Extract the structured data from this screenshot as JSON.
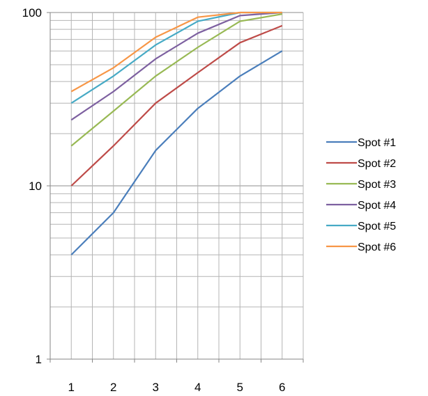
{
  "chart_data": {
    "type": "line",
    "x": [
      1,
      2,
      3,
      4,
      5,
      6
    ],
    "y_scale": "log",
    "ylim": [
      1,
      100
    ],
    "y_ticks": [
      "1",
      "10",
      "100"
    ],
    "grid": true,
    "legend_position": "right",
    "series": [
      {
        "name": "Spot #1",
        "color": "#4a7ebb",
        "values": [
          4,
          7,
          16,
          28,
          43,
          60
        ]
      },
      {
        "name": "Spot #2",
        "color": "#be4b48",
        "values": [
          10,
          17,
          30,
          45,
          67,
          84
        ]
      },
      {
        "name": "Spot #3",
        "color": "#98b954",
        "values": [
          17,
          27,
          43,
          63,
          89,
          98
        ]
      },
      {
        "name": "Spot #4",
        "color": "#7d60a0",
        "values": [
          24,
          35,
          54,
          76,
          96,
          100
        ]
      },
      {
        "name": "Spot #5",
        "color": "#46aac5",
        "values": [
          30,
          43,
          65,
          89,
          100,
          100
        ]
      },
      {
        "name": "Spot #6",
        "color": "#f79646",
        "values": [
          35,
          48,
          72,
          94,
          100,
          100
        ]
      }
    ]
  }
}
